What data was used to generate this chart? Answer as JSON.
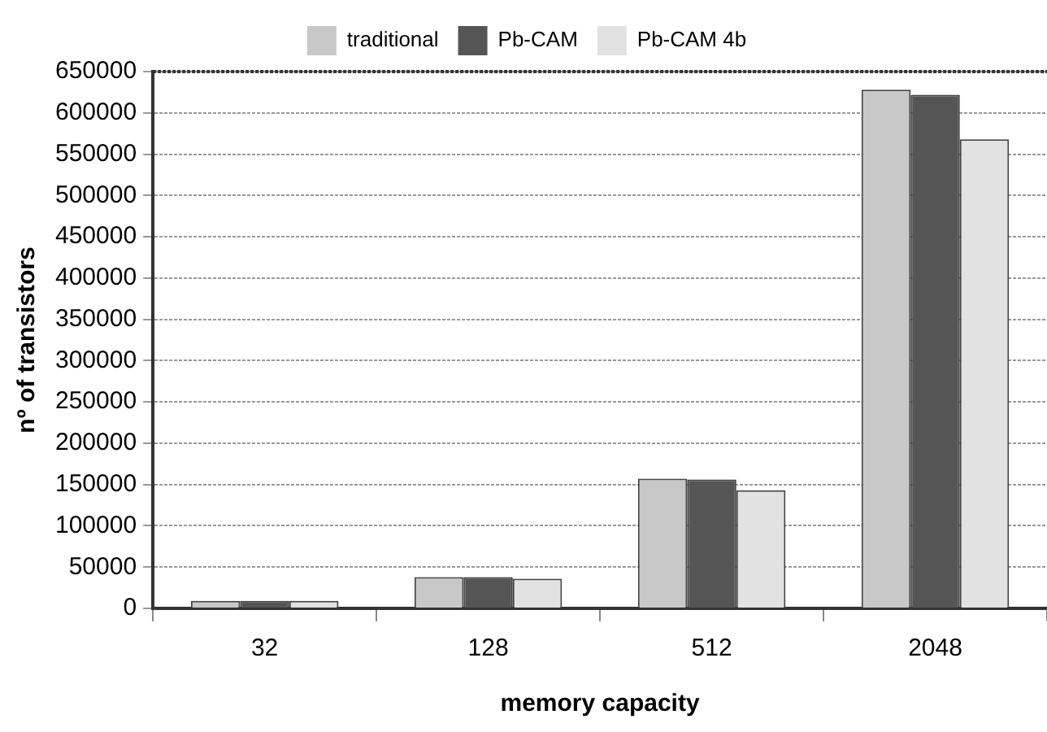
{
  "chart_data": {
    "type": "bar",
    "xlabel": "memory capacity",
    "ylabel": "nº of transistors",
    "categories": [
      "32",
      "128",
      "512",
      "2048"
    ],
    "series": [
      {
        "name": "traditional",
        "color": "#c8c8c8",
        "values": [
          9000,
          38000,
          157000,
          628000
        ]
      },
      {
        "name": "Pb-CAM",
        "color": "#555555",
        "values": [
          9000,
          38000,
          156000,
          622000
        ]
      },
      {
        "name": "Pb-CAM 4b",
        "color": "#e2e2e2",
        "values": [
          9000,
          36000,
          143000,
          568000
        ]
      }
    ],
    "ylim": [
      0,
      650000
    ],
    "yticks": [
      0,
      50000,
      100000,
      150000,
      200000,
      250000,
      300000,
      350000,
      400000,
      450000,
      500000,
      550000,
      600000,
      650000
    ],
    "grid": "y",
    "legend": "top"
  }
}
